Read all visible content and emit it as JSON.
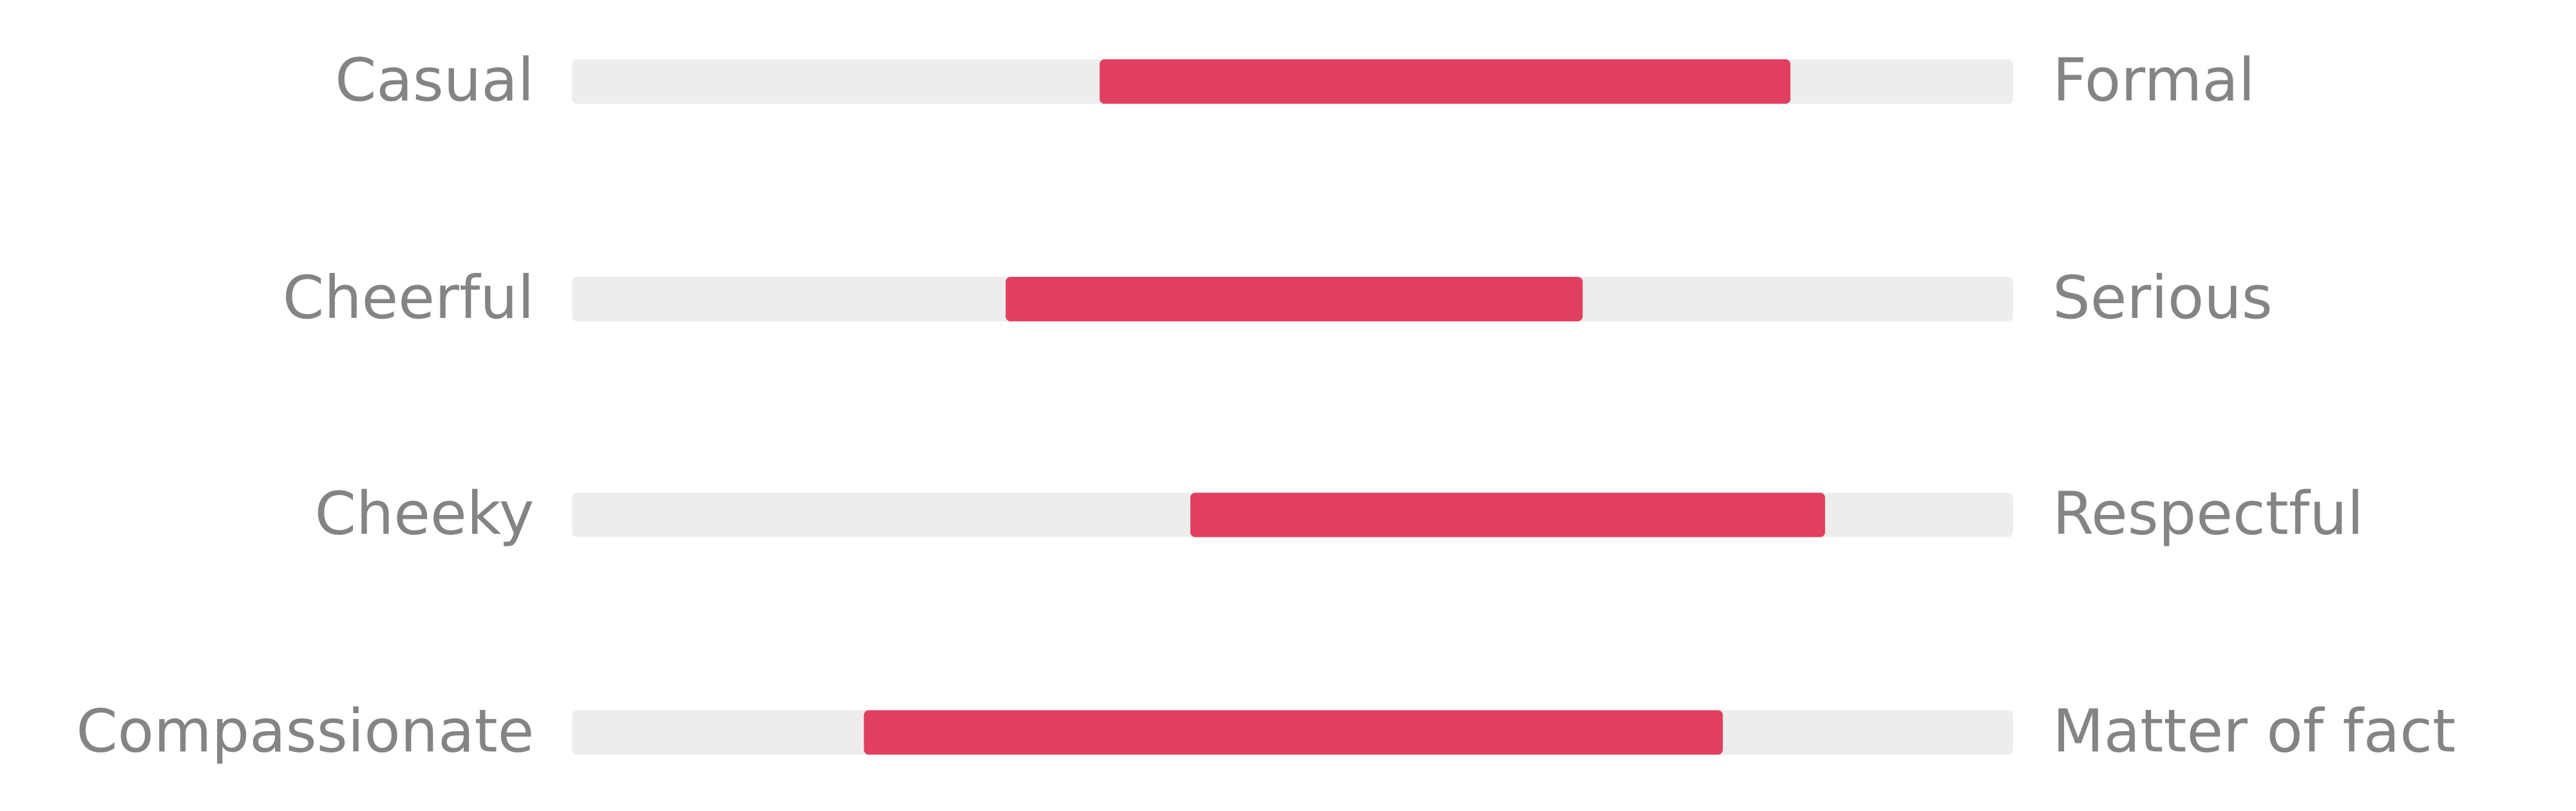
{
  "chart_data": {
    "type": "bar",
    "subtype": "range-slider",
    "scale": [
      0,
      1
    ],
    "colors": {
      "fill": "#e03f5f",
      "track": "#ededed",
      "label": "#848484"
    },
    "rows": [
      {
        "left_label": "Casual",
        "right_label": "Formal",
        "start": 0.366,
        "end": 0.846
      },
      {
        "left_label": "Cheerful",
        "right_label": "Serious",
        "start": 0.301,
        "end": 0.701
      },
      {
        "left_label": "Cheeky",
        "right_label": "Respectful",
        "start": 0.429,
        "end": 0.87
      },
      {
        "left_label": "Compassionate",
        "right_label": "Matter of fact",
        "start": 0.202,
        "end": 0.799
      }
    ]
  }
}
